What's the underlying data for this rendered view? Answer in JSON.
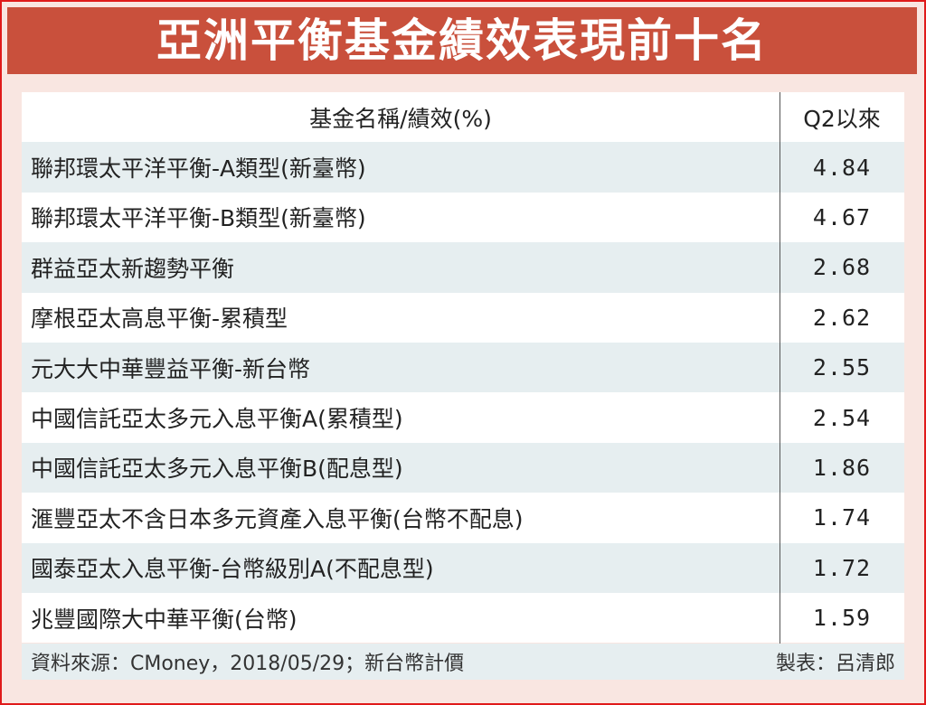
{
  "title": "亞洲平衡基金績效表現前十名",
  "chart_data": {
    "type": "table",
    "title": "亞洲平衡基金績效表現前十名",
    "columns": [
      "基金名稱/績效(%)",
      "Q2以來"
    ],
    "rows": [
      {
        "name": "聯邦環太平洋平衡-A類型(新臺幣)",
        "value": "4.84"
      },
      {
        "name": "聯邦環太平洋平衡-B類型(新臺幣)",
        "value": "4.67"
      },
      {
        "name": "群益亞太新趨勢平衡",
        "value": "2.68"
      },
      {
        "name": "摩根亞太高息平衡-累積型",
        "value": "2.62"
      },
      {
        "name": "元大大中華豐益平衡-新台幣",
        "value": "2.55"
      },
      {
        "name": "中國信託亞太多元入息平衡A(累積型)",
        "value": "2.54"
      },
      {
        "name": "中國信託亞太多元入息平衡B(配息型)",
        "value": "1.86"
      },
      {
        "name": "滙豐亞太不含日本多元資產入息平衡(台幣不配息)",
        "value": "1.74"
      },
      {
        "name": "國泰亞太入息平衡-台幣級別A(不配息型)",
        "value": "1.72"
      },
      {
        "name": "兆豐國際大中華平衡(台幣)",
        "value": "1.59"
      }
    ]
  },
  "footer": {
    "source": "資料來源：CMoney，2018/05/29；新台幣計價",
    "author": "製表：呂清郎"
  },
  "colors": {
    "title_bg": "#c9503c",
    "border": "#e01a1a",
    "row_alt": "#e6eef0",
    "background": "#f9e6e1"
  }
}
